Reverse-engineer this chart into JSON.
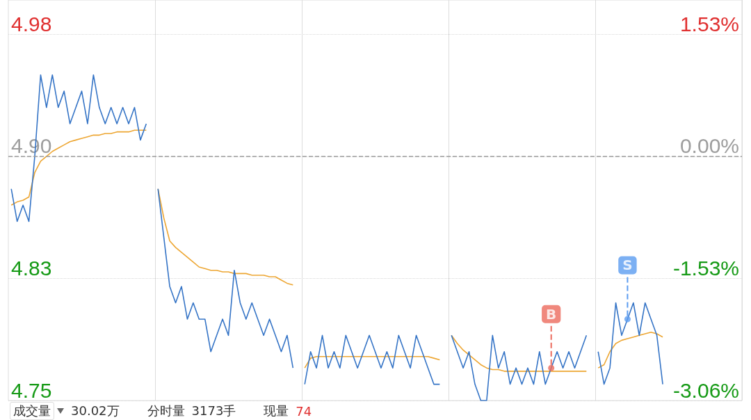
{
  "chart_data": {
    "type": "line",
    "categories": [
      null,
      null,
      null,
      null,
      null,
      null,
      null,
      null,
      null,
      null,
      null,
      null,
      null,
      null,
      null,
      null,
      null,
      null,
      null,
      null,
      null,
      null,
      null,
      null,
      null,
      null,
      null,
      null,
      null,
      null,
      null,
      null,
      null,
      null,
      null,
      null,
      null,
      null,
      null,
      null,
      null,
      null,
      null,
      null,
      null,
      null,
      null,
      null,
      null,
      null,
      null,
      null,
      null,
      null,
      null,
      null,
      null,
      null,
      null,
      null,
      null,
      null,
      null,
      null,
      null,
      null,
      null,
      null,
      null,
      null,
      null,
      null,
      null,
      null,
      null,
      null,
      null,
      null,
      null,
      null,
      null,
      null,
      null,
      null,
      null,
      null,
      null,
      null,
      null,
      null,
      null,
      null,
      null,
      null,
      null,
      null,
      null,
      null,
      null,
      null,
      null,
      null,
      null,
      null,
      null,
      null,
      null,
      null,
      null,
      null,
      null,
      null,
      null,
      null,
      null,
      null,
      null,
      null,
      null,
      null,
      null,
      null,
      null,
      null,
      null
    ],
    "series": [
      {
        "color": "#3574c6",
        "values": [
          4.88,
          4.86,
          4.87,
          4.86,
          4.9,
          4.95,
          4.93,
          4.95,
          4.93,
          4.94,
          4.92,
          4.93,
          4.94,
          4.92,
          4.95,
          4.93,
          4.92,
          4.93,
          4.92,
          4.93,
          4.92,
          4.93,
          4.91,
          4.92,
          null,
          4.88,
          4.85,
          4.82,
          4.81,
          4.82,
          4.8,
          4.81,
          4.8,
          4.8,
          4.78,
          4.79,
          4.8,
          4.79,
          4.83,
          4.81,
          4.8,
          4.81,
          4.8,
          4.79,
          4.8,
          4.79,
          4.78,
          4.79,
          4.77,
          null,
          4.76,
          4.78,
          4.77,
          4.79,
          4.77,
          4.78,
          4.77,
          4.79,
          4.78,
          4.77,
          4.78,
          4.79,
          4.78,
          4.77,
          4.78,
          4.77,
          4.79,
          4.78,
          4.77,
          4.79,
          4.78,
          4.77,
          4.76,
          4.76,
          null,
          4.79,
          4.78,
          4.77,
          4.78,
          4.76,
          4.75,
          4.75,
          4.79,
          4.77,
          4.78,
          4.76,
          4.77,
          4.76,
          4.77,
          4.76,
          4.78,
          4.76,
          4.77,
          4.78,
          4.77,
          4.78,
          4.77,
          4.78,
          4.79,
          null,
          4.78,
          4.76,
          4.77,
          4.81,
          4.79,
          4.8,
          4.81,
          4.79,
          4.81,
          4.8,
          4.79,
          4.76,
          null,
          null,
          null,
          null,
          null,
          null,
          null,
          null,
          null,
          null,
          null,
          null,
          null
        ]
      },
      {
        "color": "#eda632",
        "values": [
          4.87,
          4.872,
          4.873,
          4.875,
          4.89,
          4.897,
          4.9,
          4.903,
          4.905,
          4.907,
          4.909,
          4.91,
          4.911,
          4.912,
          4.913,
          4.913,
          4.914,
          4.914,
          4.915,
          4.915,
          4.915,
          4.916,
          4.916,
          4.916,
          null,
          4.88,
          4.862,
          4.848,
          4.844,
          4.841,
          4.838,
          4.835,
          4.832,
          4.831,
          4.83,
          4.83,
          4.829,
          4.829,
          4.828,
          4.828,
          4.828,
          4.827,
          4.827,
          4.827,
          4.826,
          4.826,
          4.824,
          4.822,
          4.821,
          null,
          4.77,
          4.776,
          4.777,
          4.777,
          4.777,
          4.777,
          4.777,
          4.777,
          4.777,
          4.777,
          4.777,
          4.777,
          4.777,
          4.777,
          4.777,
          4.777,
          4.777,
          4.777,
          4.777,
          4.777,
          4.777,
          4.777,
          4.776,
          4.775,
          null,
          4.79,
          4.785,
          4.781,
          4.778,
          4.775,
          4.772,
          4.77,
          4.769,
          4.769,
          4.768,
          4.768,
          4.768,
          4.768,
          4.768,
          4.768,
          4.768,
          4.768,
          4.768,
          4.768,
          4.768,
          4.768,
          4.768,
          4.768,
          4.768,
          null,
          4.77,
          4.772,
          4.78,
          4.785,
          4.787,
          4.788,
          4.789,
          4.79,
          4.791,
          4.792,
          4.791,
          4.789,
          null,
          null,
          null,
          null,
          null,
          null,
          null,
          null,
          null,
          null,
          null,
          null,
          null
        ]
      },
      {
        "name": "B",
        "type": "scatter",
        "marker": "circle",
        "color": "#ec6a5c",
        "values": [
          null,
          null,
          null,
          null,
          null,
          null,
          null,
          null,
          null,
          null,
          null,
          null,
          null,
          null,
          null,
          null,
          null,
          null,
          null,
          null,
          null,
          null,
          null,
          null,
          null,
          null,
          null,
          null,
          null,
          null,
          null,
          null,
          null,
          null,
          null,
          null,
          null,
          null,
          null,
          null,
          null,
          null,
          null,
          null,
          null,
          null,
          null,
          null,
          null,
          null,
          null,
          null,
          null,
          null,
          null,
          null,
          null,
          null,
          null,
          null,
          null,
          null,
          null,
          null,
          null,
          null,
          null,
          null,
          null,
          null,
          null,
          null,
          null,
          null,
          null,
          null,
          null,
          null,
          null,
          null,
          null,
          null,
          null,
          null,
          null,
          null,
          null,
          null,
          null,
          null,
          null,
          null,
          4.77,
          null,
          null,
          null,
          null,
          null,
          null,
          null,
          null,
          null,
          null,
          null,
          null,
          null,
          null,
          null,
          null,
          null,
          null,
          null,
          null,
          null,
          null,
          null,
          null,
          null,
          null,
          null,
          null,
          null,
          null,
          null,
          null
        ]
      },
      {
        "name": "S",
        "type": "scatter",
        "marker": "circle",
        "color": "#5b9cf0",
        "values": [
          null,
          null,
          null,
          null,
          null,
          null,
          null,
          null,
          null,
          null,
          null,
          null,
          null,
          null,
          null,
          null,
          null,
          null,
          null,
          null,
          null,
          null,
          null,
          null,
          null,
          null,
          null,
          null,
          null,
          null,
          null,
          null,
          null,
          null,
          null,
          null,
          null,
          null,
          null,
          null,
          null,
          null,
          null,
          null,
          null,
          null,
          null,
          null,
          null,
          null,
          null,
          null,
          null,
          null,
          null,
          null,
          null,
          null,
          null,
          null,
          null,
          null,
          null,
          null,
          null,
          null,
          null,
          null,
          null,
          null,
          null,
          null,
          null,
          null,
          null,
          null,
          null,
          null,
          null,
          null,
          null,
          null,
          null,
          null,
          null,
          null,
          null,
          null,
          null,
          null,
          null,
          null,
          null,
          null,
          null,
          null,
          null,
          null,
          null,
          null,
          null,
          null,
          null,
          null,
          null,
          4.8,
          null,
          null,
          null,
          null,
          null,
          null,
          null,
          null,
          null,
          null,
          null,
          null,
          null,
          null,
          null,
          null,
          null,
          null,
          null
        ]
      }
    ],
    "ylim": [
      4.75,
      4.996
    ],
    "yticks": [
      {
        "value": 4.975,
        "label": "4.98"
      },
      {
        "value": 4.9,
        "label": "4.90"
      },
      {
        "value": 4.825,
        "label": "4.83"
      },
      4.75
    ],
    "y2lim": [
      -3.06,
      1.96
    ],
    "y2ticks": [
      {
        "value": 1.53,
        "label": "1.53%"
      },
      {
        "value": 0,
        "label": "0.00%"
      },
      {
        "value": -1.53,
        "label": "-1.53%"
      },
      {
        "value": -3.06,
        "label": "-3.06%"
      }
    ],
    "ref_lines": [
      {
        "axis": "y",
        "value": 4.9,
        "color": "#9e9e9e",
        "line_style": "dashed"
      }
    ],
    "grid": true,
    "marker": "none",
    "annotations": [
      "成交量",
      "30.02万",
      "分时量",
      "3173手",
      "现量",
      "74"
    ]
  }
}
